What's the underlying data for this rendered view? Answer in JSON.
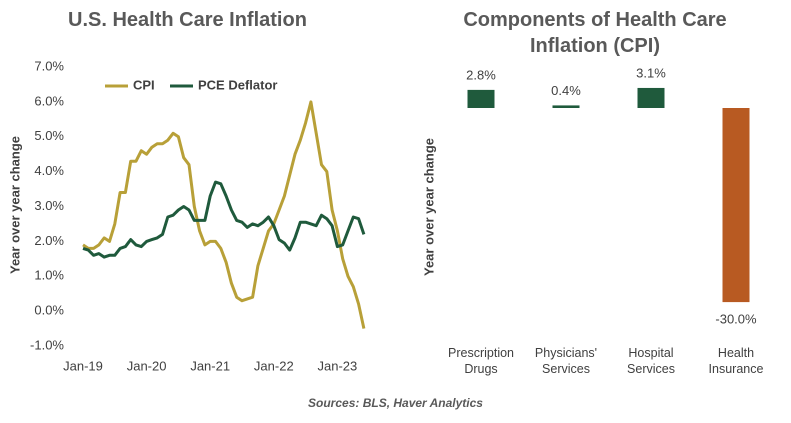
{
  "chart_data": [
    {
      "type": "line",
      "title": "U.S. Health Care Inflation",
      "y_label": "Year over year change",
      "categories": [
        "Jan-19",
        null,
        null,
        null,
        null,
        null,
        null,
        null,
        null,
        null,
        null,
        null,
        "Jan-20",
        null,
        null,
        null,
        null,
        null,
        null,
        null,
        null,
        null,
        null,
        null,
        "Jan-21",
        null,
        null,
        null,
        null,
        null,
        null,
        null,
        null,
        null,
        null,
        null,
        "Jan-22",
        null,
        null,
        null,
        null,
        null,
        null,
        null,
        null,
        null,
        null,
        null,
        "Jan-23",
        null,
        null,
        null,
        null,
        null
      ],
      "series": [
        {
          "name": "CPI",
          "color": "#b8a038",
          "values": [
            1.9,
            1.8,
            1.8,
            1.9,
            2.1,
            2.0,
            2.5,
            3.4,
            3.4,
            4.3,
            4.3,
            4.6,
            4.5,
            4.7,
            4.8,
            4.8,
            4.9,
            5.1,
            5.0,
            4.4,
            4.2,
            3.0,
            2.3,
            1.9,
            2.0,
            2.0,
            1.8,
            1.4,
            0.8,
            0.4,
            0.3,
            0.35,
            0.4,
            1.3,
            1.8,
            2.3,
            2.5,
            2.9,
            3.3,
            3.9,
            4.5,
            4.9,
            5.4,
            6.0,
            5.1,
            4.2,
            4.0,
            2.9,
            2.3,
            1.5,
            1.0,
            0.7,
            0.2,
            -0.5
          ]
        },
        {
          "name": "PCE Deflator",
          "color": "#1f5a3c",
          "values": [
            1.8,
            1.75,
            1.6,
            1.65,
            1.55,
            1.6,
            1.6,
            1.8,
            1.85,
            2.05,
            1.9,
            1.85,
            2.0,
            2.05,
            2.1,
            2.2,
            2.7,
            2.75,
            2.9,
            3.0,
            2.9,
            2.6,
            2.6,
            2.6,
            3.3,
            3.7,
            3.65,
            3.3,
            2.9,
            2.6,
            2.55,
            2.4,
            2.5,
            2.45,
            2.55,
            2.7,
            2.45,
            2.05,
            1.95,
            1.75,
            2.1,
            2.55,
            2.55,
            2.5,
            2.45,
            2.75,
            2.65,
            2.45,
            1.85,
            1.9,
            2.3,
            2.7,
            2.65,
            2.2
          ]
        }
      ],
      "ylim": [
        -1,
        7
      ],
      "yticks": [
        {
          "value": -1,
          "label": "-1.0%"
        },
        {
          "value": 0,
          "label": "0.0%"
        },
        {
          "value": 1,
          "label": "1.0%"
        },
        {
          "value": 2,
          "label": "2.0%"
        },
        {
          "value": 3,
          "label": "3.0%"
        },
        {
          "value": 4,
          "label": "4.0%"
        },
        {
          "value": 5,
          "label": "5.0%"
        },
        {
          "value": 6,
          "label": "6.0%"
        },
        {
          "value": 7,
          "label": "7.0%"
        }
      ],
      "legend": "top-left"
    },
    {
      "type": "bar",
      "title": "Components of Health Care Inflation (CPI)",
      "y_label": "Year over year change",
      "categories": [
        "Prescription Drugs",
        "Physicians' Services",
        "Hospital Services",
        "Health Insurance"
      ],
      "values": [
        2.8,
        0.4,
        3.1,
        -30.0
      ],
      "value_labels": [
        "2.8%",
        "0.4%",
        "3.1%",
        "-30.0%"
      ],
      "colors": [
        "#1f5a3c",
        "#1f5a3c",
        "#1f5a3c",
        "#b85a22"
      ]
    }
  ],
  "source": "Sources: BLS, Haver Analytics"
}
